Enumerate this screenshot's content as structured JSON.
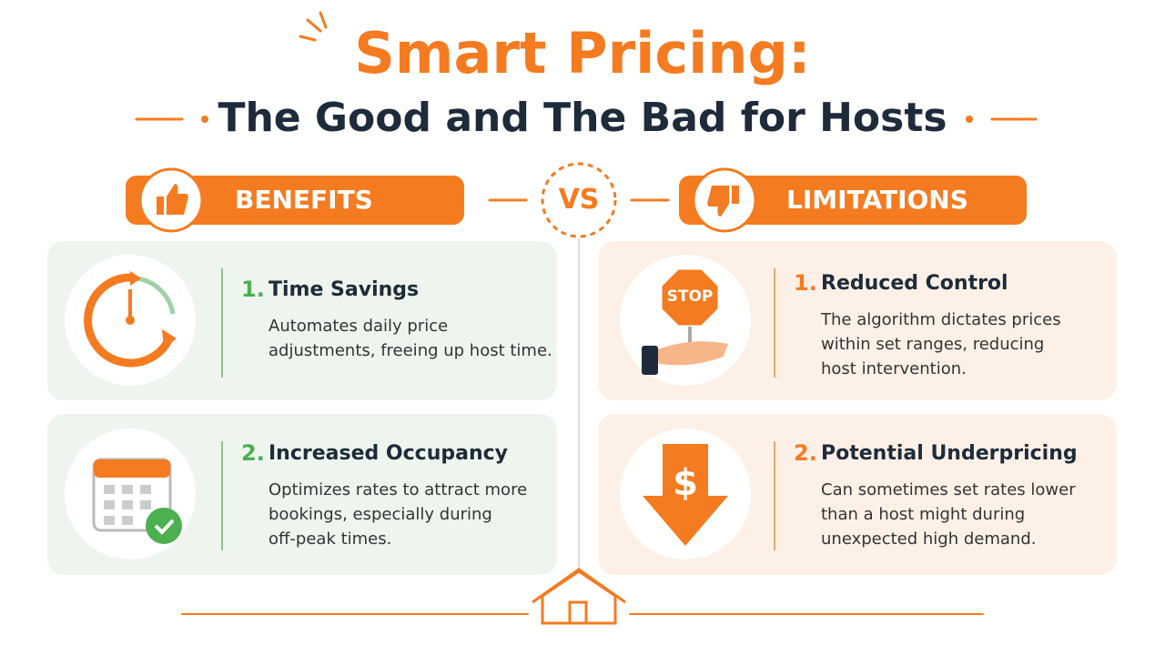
{
  "header": {
    "title": "Smart Pricing:",
    "subtitle": "The Good and The Bad for Hosts"
  },
  "benefits": {
    "label": "BENEFITS",
    "items": [
      {
        "number": "1.",
        "title": "Time Savings",
        "lines": [
          "Automates daily price",
          "adjustments, freeing up host time."
        ]
      },
      {
        "number": "2.",
        "title": "Increased Occupancy",
        "lines": [
          "Optimizes rates to attract more",
          "bookings, especially during",
          "off-peak times."
        ]
      }
    ]
  },
  "vs": "VS",
  "limitations": {
    "label": "LIMITATIONS",
    "items": [
      {
        "number": "1.",
        "title": "Reduced Control",
        "lines": [
          "The algorithm dictates prices",
          "within set ranges, reducing",
          "host intervention."
        ]
      },
      {
        "number": "2.",
        "title": "Potential Underpricing",
        "lines": [
          "Can sometimes set rates lower",
          "than a host might during",
          "unexpected high demand."
        ]
      }
    ]
  },
  "icons": {
    "stop": "STOP",
    "dollar": "$"
  }
}
